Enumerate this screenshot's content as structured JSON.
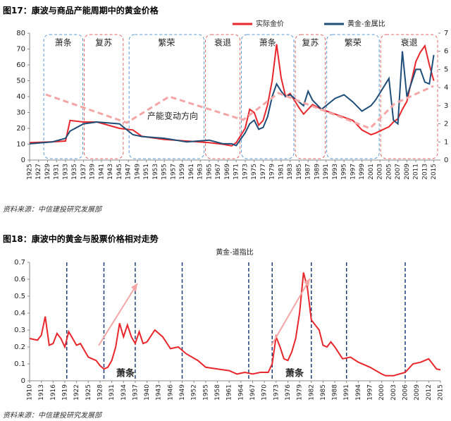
{
  "chart_data": [
    {
      "type": "line",
      "title": "图17：康波与商品产能周期中的黄金价格",
      "source": "资料来源：中信建投研究发展部",
      "x": [
        1925,
        1930,
        1933,
        1934,
        1937,
        1940,
        1945,
        1948,
        1950,
        1955,
        1960,
        1965,
        1968,
        1970,
        1971,
        1973,
        1974,
        1975,
        1976,
        1977,
        1978,
        1979,
        1980,
        1981,
        1982,
        1983,
        1985,
        1986,
        1987,
        1988,
        1990,
        1993,
        1995,
        1997,
        1999,
        2001,
        2002,
        2005,
        2006,
        2007,
        2008,
        2009,
        2011,
        2012,
        2013,
        2014,
        2015
      ],
      "series": [
        {
          "name": "实际金价",
          "color": "#e8262b",
          "values": [
            11,
            11.5,
            12,
            25,
            24,
            24,
            20,
            19,
            15,
            13,
            12,
            11,
            10,
            9,
            11,
            20,
            32,
            30,
            22,
            25,
            35,
            50,
            73,
            52,
            40,
            42,
            33,
            29,
            32,
            35,
            32,
            29,
            27,
            25,
            19,
            16,
            17,
            21,
            24,
            26,
            32,
            37,
            62,
            68,
            72,
            60,
            50
          ]
        },
        {
          "name": "黄金-金属比",
          "color": "#1f4e79",
          "axis": "y2",
          "values": [
            0.9,
            1.0,
            1.2,
            1.6,
            2.0,
            2.1,
            2.0,
            1.4,
            1.3,
            1.2,
            1.0,
            1.1,
            0.9,
            0.9,
            0.8,
            1.5,
            2.0,
            2.2,
            1.7,
            1.8,
            2.4,
            3.5,
            4.2,
            3.8,
            3.5,
            3.6,
            3.2,
            3.0,
            3.8,
            3.3,
            2.8,
            3.4,
            3.6,
            3.2,
            2.7,
            3.0,
            3.3,
            4.5,
            2.2,
            2.0,
            6.0,
            3.5,
            5.0,
            5.0,
            4.3,
            4.2,
            5.8
          ]
        }
      ],
      "xlim": [
        1925,
        2016
      ],
      "xticks": [
        1925,
        1927,
        1929,
        1931,
        1933,
        1935,
        1937,
        1939,
        1941,
        1943,
        1945,
        1947,
        1949,
        1951,
        1953,
        1955,
        1957,
        1959,
        1961,
        1963,
        1965,
        1967,
        1969,
        1971,
        1973,
        1975,
        1977,
        1979,
        1981,
        1983,
        1985,
        1987,
        1989,
        1991,
        1993,
        1995,
        1997,
        1999,
        2001,
        2003,
        2005,
        2007,
        2009,
        2011,
        2013,
        2015
      ],
      "ylim": [
        0,
        80
      ],
      "yticks": [
        0,
        10,
        20,
        30,
        40,
        50,
        60,
        70,
        80
      ],
      "y2lim": [
        0,
        7
      ],
      "y2ticks": [
        0,
        1,
        2,
        3,
        4,
        5,
        6,
        7
      ],
      "phases": [
        {
          "label": "萧条",
          "start": 1928,
          "end": 1937,
          "color": "#5b9bd5"
        },
        {
          "label": "复苏",
          "start": 1937,
          "end": 1946,
          "color": "#e06666"
        },
        {
          "label": "繁荣",
          "start": 1947,
          "end": 1964,
          "color": "#5b9bd5"
        },
        {
          "label": "衰退",
          "start": 1964,
          "end": 1972,
          "color": "#e06666"
        },
        {
          "label": "萧条",
          "start": 1972,
          "end": 1984,
          "color": "#5b9bd5"
        },
        {
          "label": "复苏",
          "start": 1984,
          "end": 1991,
          "color": "#e06666"
        },
        {
          "label": "繁荣",
          "start": 1991,
          "end": 2003,
          "color": "#5b9bd5"
        },
        {
          "label": "衰退",
          "start": 2003,
          "end": 2016,
          "color": "#e06666"
        }
      ],
      "annotation": "产能变动方向"
    },
    {
      "type": "line",
      "title": "图18：康波中的黄金与股票价格相对走势",
      "source": "资料来源：中信建投研究发展部",
      "x": [
        1910,
        1912,
        1913,
        1914,
        1915,
        1916,
        1917,
        1918,
        1919,
        1920,
        1921,
        1922,
        1923,
        1924,
        1925,
        1927,
        1928,
        1929,
        1930,
        1931,
        1932,
        1933,
        1934,
        1935,
        1936,
        1937,
        1938,
        1939,
        1940,
        1942,
        1944,
        1946,
        1948,
        1950,
        1953,
        1955,
        1958,
        1961,
        1963,
        1965,
        1967,
        1969,
        1971,
        1972,
        1973,
        1974,
        1975,
        1976,
        1977,
        1978,
        1979,
        1980,
        1981,
        1982,
        1983,
        1984,
        1985,
        1986,
        1987,
        1988,
        1990,
        1992,
        1994,
        1997,
        2000,
        2001,
        2003,
        2006,
        2008,
        2010,
        2011,
        2012,
        2013,
        2014,
        2015
      ],
      "series": [
        {
          "name": "黄金-道指比",
          "color": "#e8262b",
          "values": [
            0.25,
            0.24,
            0.27,
            0.38,
            0.21,
            0.22,
            0.28,
            0.25,
            0.2,
            0.29,
            0.25,
            0.21,
            0.22,
            0.18,
            0.14,
            0.12,
            0.09,
            0.07,
            0.08,
            0.12,
            0.2,
            0.34,
            0.26,
            0.33,
            0.26,
            0.22,
            0.29,
            0.22,
            0.23,
            0.3,
            0.26,
            0.19,
            0.2,
            0.16,
            0.12,
            0.08,
            0.07,
            0.06,
            0.04,
            0.05,
            0.04,
            0.05,
            0.05,
            0.1,
            0.26,
            0.2,
            0.13,
            0.12,
            0.17,
            0.25,
            0.4,
            0.64,
            0.55,
            0.36,
            0.33,
            0.3,
            0.21,
            0.2,
            0.23,
            0.2,
            0.13,
            0.14,
            0.11,
            0.08,
            0.04,
            0.03,
            0.03,
            0.05,
            0.1,
            0.11,
            0.12,
            0.13,
            0.1,
            0.07,
            0.065
          ]
        }
      ],
      "xlim": [
        1910,
        2015
      ],
      "xticks": [
        1910,
        1913,
        1916,
        1919,
        1922,
        1925,
        1928,
        1931,
        1934,
        1937,
        1940,
        1943,
        1946,
        1949,
        1952,
        1955,
        1958,
        1961,
        1964,
        1967,
        1970,
        1973,
        1976,
        1979,
        1982,
        1985,
        1988,
        1991,
        1994,
        1997,
        2000,
        2003,
        2006,
        2009,
        2012,
        2015
      ],
      "ylim": [
        0,
        0.7
      ],
      "yticks": [
        0,
        0.1,
        0.2,
        0.3,
        0.4,
        0.5,
        0.6,
        0.7
      ],
      "vlines": [
        1919.5,
        1929,
        1937,
        1949,
        1966,
        1972,
        1982,
        1991,
        2006
      ],
      "annotations": [
        "萧条",
        "萧条"
      ]
    }
  ]
}
